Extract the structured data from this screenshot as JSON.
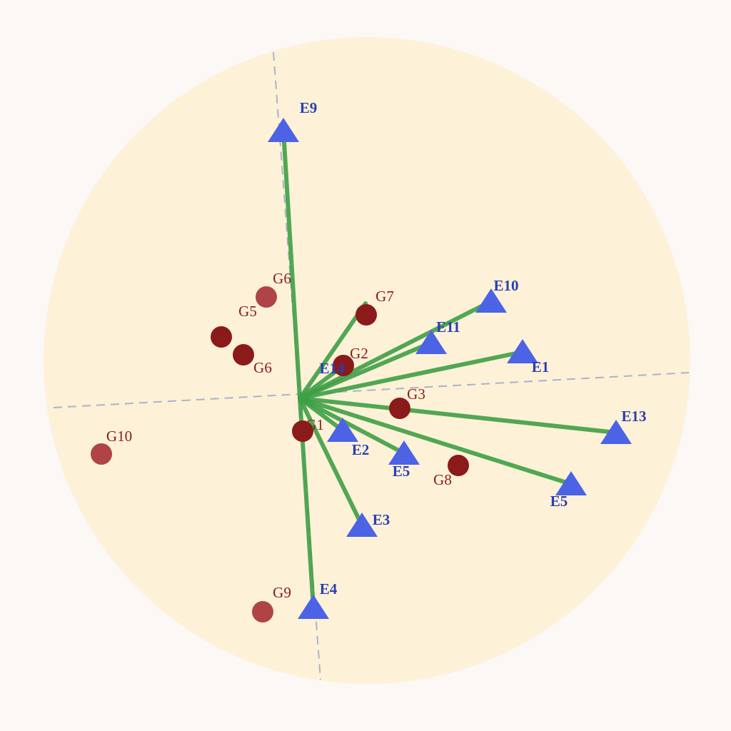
{
  "chart_data": {
    "type": "scatter",
    "title": "",
    "xlabel": "",
    "ylabel": "",
    "grid": false,
    "colors": {
      "background_circle": "#fdf1d8",
      "vector": "#3f9f45",
      "environment_marker": "#4c63e6",
      "environment_label": "#2a3fb0",
      "genotype_marker": "#8b1a1a",
      "genotype_marker_light": "#b04444",
      "genotype_label": "#8b1a1a",
      "axis_dash": "#a9b4c8"
    },
    "environments": [
      {
        "label": "E9",
        "x": -0.23,
        "y": 3.75
      },
      {
        "label": "E10",
        "x": 2.68,
        "y": 1.36
      },
      {
        "label": "E11",
        "x": 1.84,
        "y": 0.78
      },
      {
        "label": "E1",
        "x": 3.12,
        "y": 0.65
      },
      {
        "label": "E13",
        "x": 4.43,
        "y": -0.48
      },
      {
        "label": "E5",
        "x": 3.8,
        "y": -1.2
      },
      {
        "label": "E5",
        "x": 1.46,
        "y": -0.77
      },
      {
        "label": "E2",
        "x": 0.6,
        "y": -0.45
      },
      {
        "label": "E3",
        "x": 0.87,
        "y": -1.78
      },
      {
        "label": "E4",
        "x": 0.19,
        "y": -2.93
      },
      {
        "label": "E14",
        "x": 0.6,
        "y": 0.45
      },
      {
        "label": "",
        "x": 0.92,
        "y": 1.33
      }
    ],
    "genotypes": [
      {
        "label": "G6",
        "x": -0.47,
        "y": 1.42,
        "light": true
      },
      {
        "label": "G5",
        "x": -1.1,
        "y": 0.86,
        "light": false
      },
      {
        "label": "G6",
        "x": -0.79,
        "y": 0.61,
        "light": false
      },
      {
        "label": "G7",
        "x": 0.93,
        "y": 1.17,
        "light": false
      },
      {
        "label": "G2",
        "x": 0.61,
        "y": 0.46,
        "light": false
      },
      {
        "label": "G3",
        "x": 1.4,
        "y": -0.14,
        "light": false
      },
      {
        "label": "G1",
        "x": 0.04,
        "y": -0.46,
        "light": false
      },
      {
        "label": "G8",
        "x": 2.22,
        "y": -0.94,
        "light": false
      },
      {
        "label": "G10",
        "x": -2.78,
        "y": -0.78,
        "light": true
      },
      {
        "label": "G9",
        "x": -0.52,
        "y": -2.99,
        "light": true
      }
    ]
  }
}
